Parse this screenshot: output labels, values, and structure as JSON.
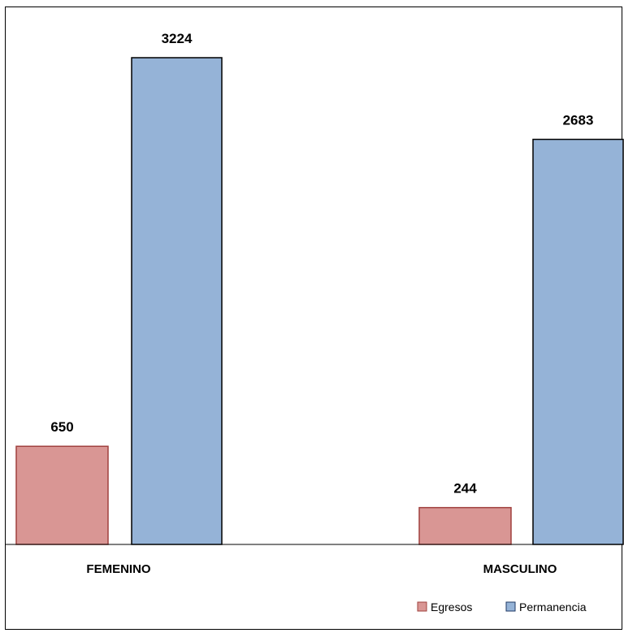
{
  "chart_data": {
    "type": "bar",
    "categories": [
      "FEMENINO",
      "MASCULINO"
    ],
    "series": [
      {
        "name": "Egresos",
        "values": [
          650,
          244
        ],
        "color": "#d99694",
        "stroke": "#a0413e"
      },
      {
        "name": "Permanencia",
        "values": [
          3224,
          2683
        ],
        "color": "#95b3d7",
        "stroke": "#000000"
      }
    ],
    "title": "",
    "xlabel": "",
    "ylabel": "",
    "ylim": [
      0,
      3224
    ],
    "grid": false,
    "legend_position": "bottom-right",
    "data_labels": true
  }
}
